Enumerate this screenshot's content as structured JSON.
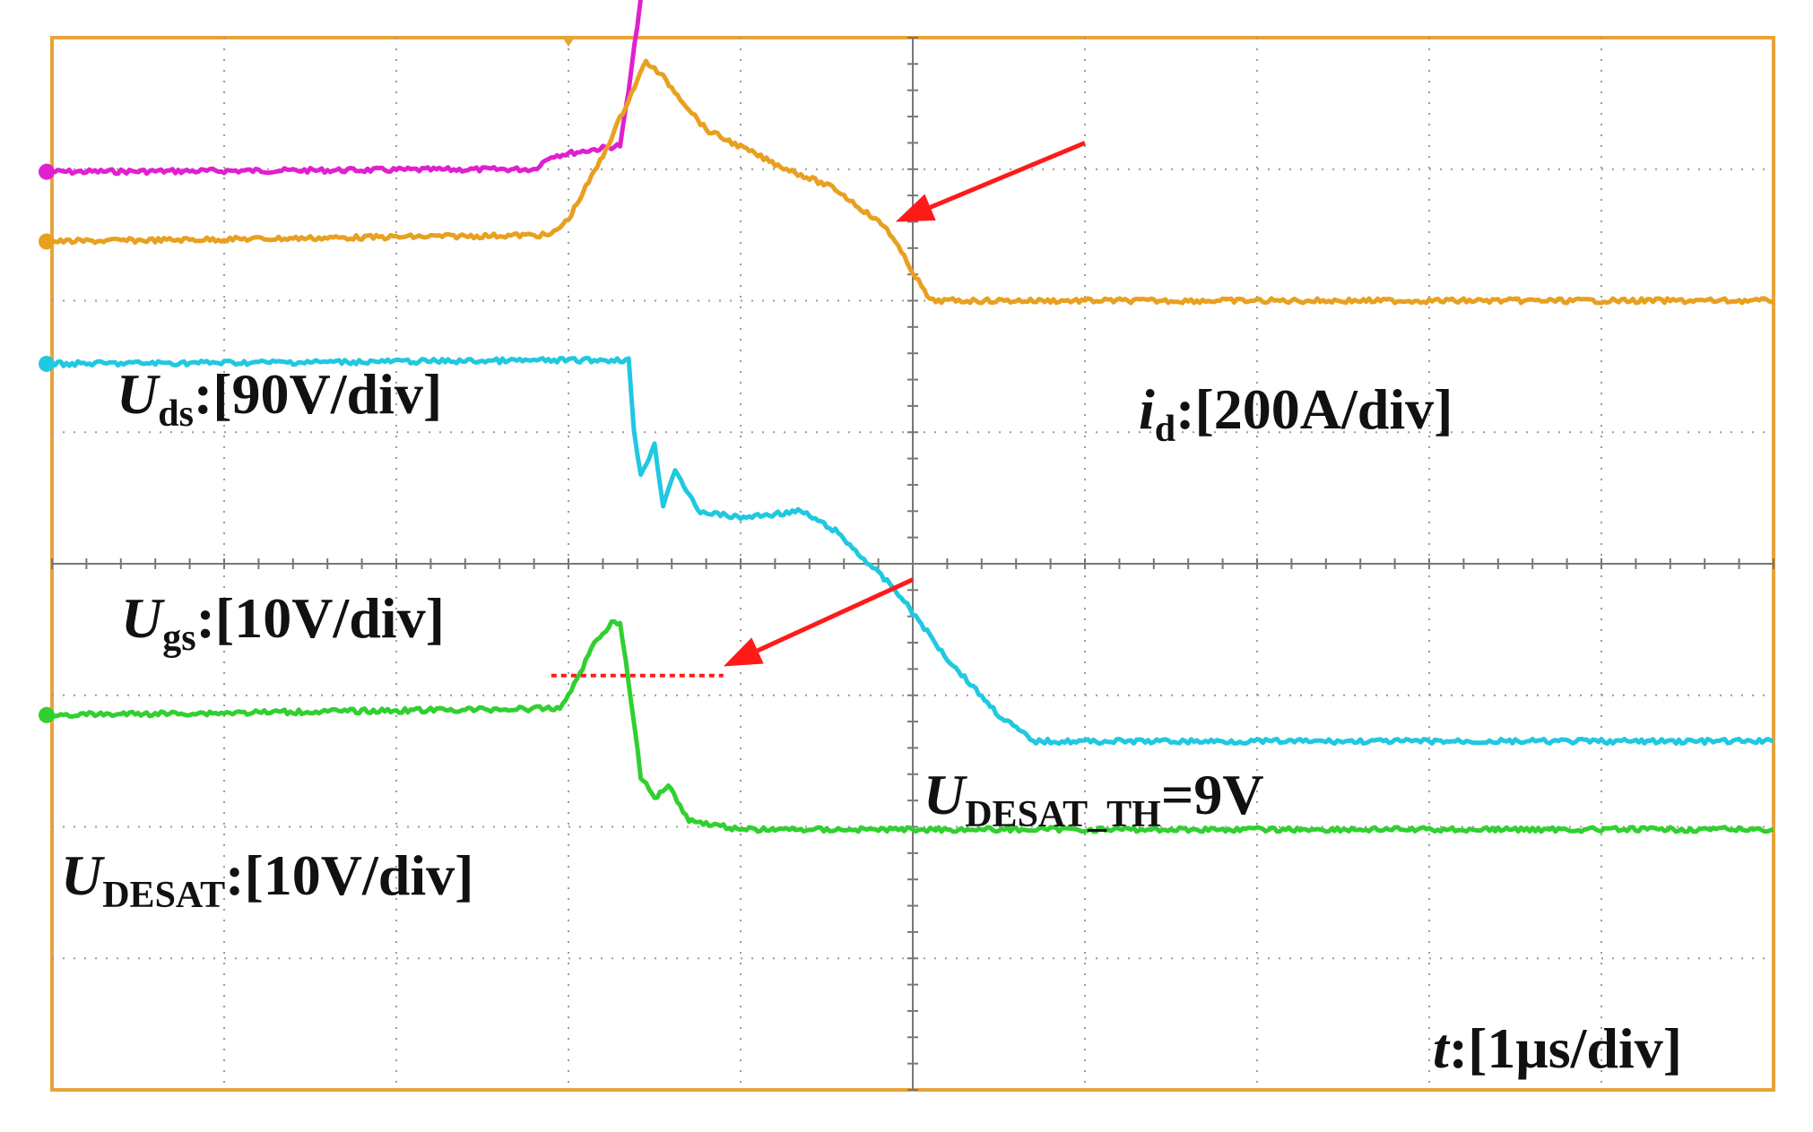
{
  "chart_data": {
    "type": "line",
    "title": "",
    "grid": true,
    "x_divisions": 10,
    "y_divisions": 8,
    "xlim_div": [
      0,
      10
    ],
    "ylim_div": [
      0,
      8
    ],
    "colors": {
      "frame": "#e8a33a",
      "grid": "#9a9a9a",
      "annotation": "#ff1a1a",
      "label": "#111111"
    },
    "series": [
      {
        "key": "Uds",
        "color": "#e020d0",
        "points": [
          [
            0,
            2.98
          ],
          [
            2.8,
            3.0
          ],
          [
            2.9,
            3.1
          ],
          [
            3.3,
            3.18
          ],
          [
            3.35,
            3.6
          ],
          [
            3.45,
            4.6
          ],
          [
            3.55,
            5.25
          ],
          [
            3.75,
            5.36
          ],
          [
            3.85,
            5.33
          ],
          [
            4.0,
            5.26
          ],
          [
            10.0,
            5.26
          ]
        ]
      },
      {
        "key": "id",
        "color": "#e8a020",
        "points": [
          [
            0,
            2.45
          ],
          [
            2.9,
            2.5
          ],
          [
            3.0,
            2.62
          ],
          [
            3.2,
            3.1
          ],
          [
            3.45,
            3.82
          ],
          [
            3.55,
            3.7
          ],
          [
            3.8,
            3.3
          ],
          [
            4.2,
            3.04
          ],
          [
            4.55,
            2.85
          ],
          [
            4.85,
            2.55
          ],
          [
            5.1,
            2.0
          ],
          [
            5.25,
            2.0
          ],
          [
            10.0,
            2.0
          ]
        ]
      },
      {
        "key": "Ugs",
        "color": "#20c8e0",
        "points": [
          [
            0,
            1.52
          ],
          [
            3.35,
            1.55
          ],
          [
            3.38,
            1.0
          ],
          [
            3.42,
            0.68
          ],
          [
            3.5,
            0.9
          ],
          [
            3.55,
            0.45
          ],
          [
            3.62,
            0.72
          ],
          [
            3.75,
            0.4
          ],
          [
            4.0,
            0.35
          ],
          [
            4.35,
            0.4
          ],
          [
            4.55,
            0.25
          ],
          [
            4.9,
            -0.2
          ],
          [
            5.2,
            -0.72
          ],
          [
            5.5,
            -1.15
          ],
          [
            5.7,
            -1.35
          ],
          [
            10.0,
            -1.35
          ]
        ]
      },
      {
        "key": "UDESAT",
        "color": "#30d030",
        "points": [
          [
            0,
            -1.15
          ],
          [
            2.95,
            -1.1
          ],
          [
            3.05,
            -0.88
          ],
          [
            3.15,
            -0.6
          ],
          [
            3.25,
            -0.45
          ],
          [
            3.3,
            -0.45
          ],
          [
            3.35,
            -0.9
          ],
          [
            3.42,
            -1.62
          ],
          [
            3.5,
            -1.78
          ],
          [
            3.58,
            -1.68
          ],
          [
            3.7,
            -1.95
          ],
          [
            4.0,
            -2.02
          ],
          [
            10.0,
            -2.02
          ]
        ]
      }
    ],
    "threshold_line": {
      "x": [
        2.9,
        3.9
      ],
      "y": -0.85
    },
    "annotations": [
      {
        "key": "id",
        "from": [
          6.0,
          3.2
        ],
        "to": [
          4.9,
          2.6
        ]
      },
      {
        "key": "desat_th",
        "from": [
          5.0,
          -0.12
        ],
        "to": [
          3.9,
          -0.78
        ]
      }
    ],
    "labels": {
      "uds_main": "U",
      "uds_sub": "ds",
      "uds_rest": ":[90V/div]",
      "id_main": "i",
      "id_sub": "d",
      "id_rest": ":[200A/div]",
      "ugs_main": "U",
      "ugs_sub": "gs",
      "ugs_rest": ":[10V/div]",
      "desat_main": "U",
      "desat_sub": "DESAT",
      "desat_rest": ":[10V/div]",
      "desat_th_main": "U",
      "desat_th_sub": "DESAT_TH",
      "desat_th_rest": "=9V",
      "t_main": "t",
      "t_rest": ":[1μs/div]"
    }
  }
}
